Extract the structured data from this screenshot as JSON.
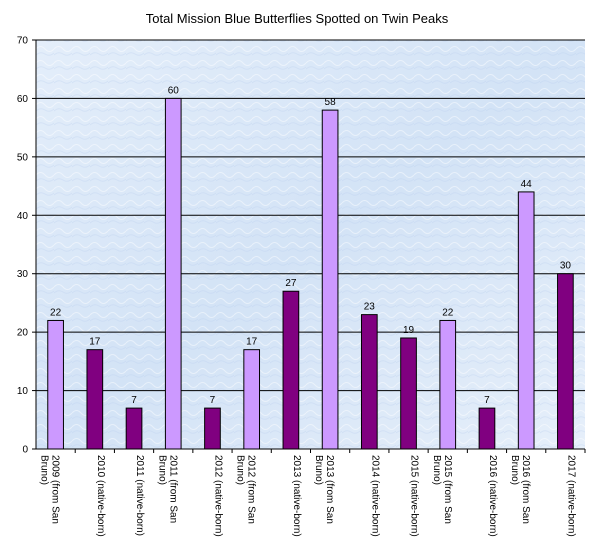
{
  "chart_data": {
    "type": "bar",
    "title": "Total Mission Blue Butterflies Spotted on Twin Peaks",
    "xlabel": "",
    "ylabel": "",
    "ylim": [
      0,
      70
    ],
    "yticks": [
      0,
      10,
      20,
      30,
      40,
      50,
      60,
      70
    ],
    "grid": true,
    "legend": "none",
    "categories": [
      "2009 (from San Bruno)",
      "2010 (native-born)",
      "2011 (native-born)",
      "2011 (from San Bruno)",
      "2012 (native-born)",
      "2012 (from San Bruno)",
      "2013 (native-born)",
      "2013 (from San Bruno)",
      "2014 (native-born)",
      "2015 (native-born)",
      "2015 (from San Bruno)",
      "2016 (native-born)",
      "2016 (from San Bruno)",
      "2017 (native-born)"
    ],
    "category_lines": [
      [
        "2009 (from San",
        "Bruno)"
      ],
      [
        "2010 (native-born)"
      ],
      [
        "2011 (native-born)"
      ],
      [
        "2011 (from San",
        "Bruno)"
      ],
      [
        "2012 (native-born)"
      ],
      [
        "2012 (from San",
        "Bruno)"
      ],
      [
        "2013 (native-born)"
      ],
      [
        "2013 (from San",
        "Bruno)"
      ],
      [
        "2014 (native-born)"
      ],
      [
        "2015 (native-born)"
      ],
      [
        "2015 (from San",
        "Bruno)"
      ],
      [
        "2016 (native-born)"
      ],
      [
        "2016 (from San",
        "Bruno)"
      ],
      [
        "2017 (native-born)"
      ]
    ],
    "values": [
      22,
      17,
      7,
      60,
      7,
      17,
      27,
      58,
      23,
      19,
      22,
      7,
      44,
      30
    ],
    "origin": [
      "from San Bruno",
      "native-born",
      "native-born",
      "from San Bruno",
      "native-born",
      "from San Bruno",
      "native-born",
      "from San Bruno",
      "native-born",
      "native-born",
      "from San Bruno",
      "native-born",
      "from San Bruno",
      "native-born"
    ],
    "colors": {
      "from San Bruno": "#cc99ff",
      "native-born": "#800080",
      "plot_background": "#dde9f7",
      "gridline": "#000000"
    }
  }
}
